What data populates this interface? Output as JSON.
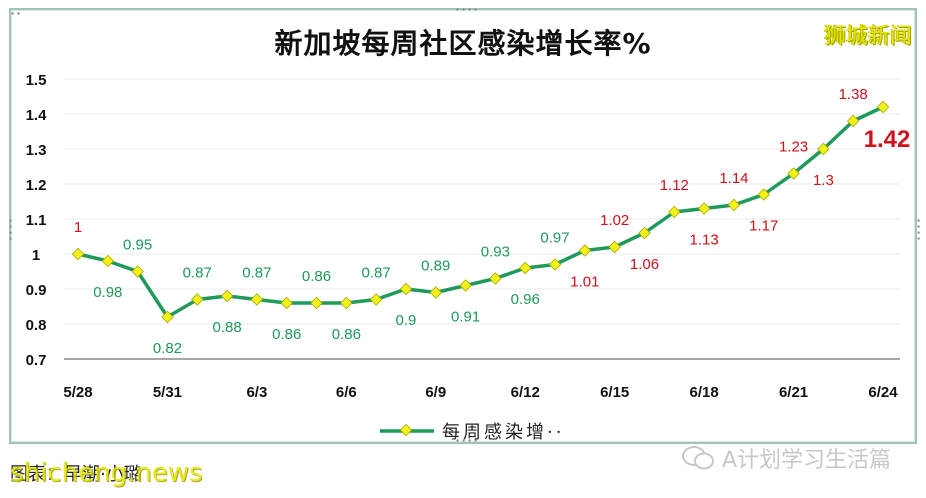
{
  "header": {
    "title": "新加坡每周社区感染增长率%",
    "brand": "狮城新闻"
  },
  "legend": {
    "label": "每周感染增··"
  },
  "footer": {
    "source": "图表：早潮·小璐",
    "watermark": "shicheng.news",
    "account": "A计划学习生活篇"
  },
  "colors": {
    "line": "#1f9a5a",
    "marker_fill": "#f2f21a",
    "label_green": "#1f9a5a",
    "label_red": "#d0101a",
    "grid": "#eeeeee",
    "axis": "#888888"
  },
  "chart_data": {
    "type": "line",
    "title": "新加坡每周社区感染增长率%",
    "xlabel": "",
    "ylabel": "",
    "ylim": [
      0.7,
      1.5
    ],
    "yticks": [
      1.5,
      1.4,
      1.3,
      1.2,
      1.1,
      1,
      0.9,
      0.8,
      0.7
    ],
    "xtick_labels": [
      "5/28",
      "5/31",
      "6/3",
      "6/6",
      "6/9",
      "6/12",
      "6/15",
      "6/18",
      "6/21",
      "6/24"
    ],
    "grid": true,
    "legend_position": "bottom",
    "categories": [
      "5/28",
      "5/29",
      "5/30",
      "5/31",
      "6/1",
      "6/2",
      "6/3",
      "6/4",
      "6/5",
      "6/6",
      "6/7",
      "6/8",
      "6/9",
      "6/10",
      "6/11",
      "6/12",
      "6/13",
      "6/14",
      "6/15",
      "6/16",
      "6/17",
      "6/18",
      "6/19",
      "6/20",
      "6/21",
      "6/22",
      "6/23",
      "6/24"
    ],
    "series": [
      {
        "name": "每周感染增长率",
        "values": [
          1,
          0.98,
          0.95,
          0.82,
          0.87,
          0.88,
          0.87,
          0.86,
          0.86,
          0.86,
          0.87,
          0.9,
          0.89,
          0.91,
          0.93,
          0.96,
          0.97,
          1.01,
          1.02,
          1.06,
          1.12,
          1.13,
          1.14,
          1.17,
          1.23,
          1.3,
          1.38,
          1.42
        ]
      }
    ],
    "label_positions": [
      "above",
      "below",
      "above",
      "below",
      "above",
      "below",
      "above",
      "below",
      "above",
      "below",
      "above",
      "below",
      "above",
      "below",
      "above",
      "below",
      "above",
      "below",
      "above",
      "below",
      "above",
      "below",
      "above",
      "below",
      "above",
      "below",
      "above",
      "right"
    ],
    "annotation": "1.42 highlighted in large bold red"
  }
}
